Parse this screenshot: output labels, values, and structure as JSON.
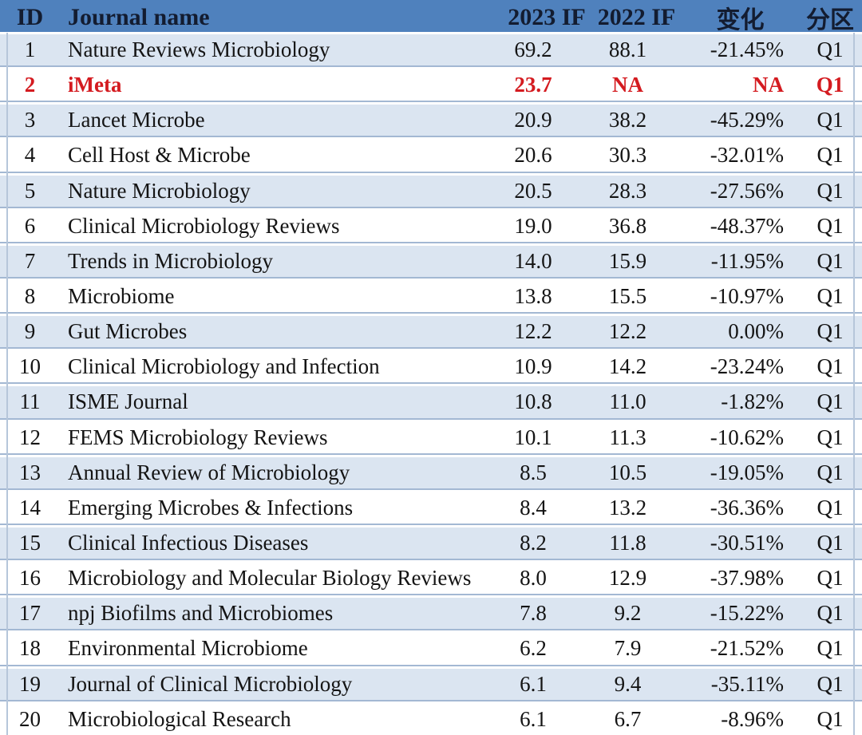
{
  "table": {
    "header": {
      "id": "ID",
      "name": "Journal name",
      "if2023": "2023 IF",
      "if2022": "2022 IF",
      "change": "变化",
      "quartile": "分区"
    },
    "rows": [
      {
        "id": "1",
        "name": "Nature Reviews Microbiology",
        "if2023": "69.2",
        "if2022": "88.1",
        "change": "-21.45%",
        "quartile": "Q1",
        "highlight": false
      },
      {
        "id": "2",
        "name": "iMeta",
        "if2023": "23.7",
        "if2022": "NA",
        "change": "NA",
        "quartile": "Q1",
        "highlight": true
      },
      {
        "id": "3",
        "name": "Lancet Microbe",
        "if2023": "20.9",
        "if2022": "38.2",
        "change": "-45.29%",
        "quartile": "Q1",
        "highlight": false
      },
      {
        "id": "4",
        "name": "Cell Host & Microbe",
        "if2023": "20.6",
        "if2022": "30.3",
        "change": "-32.01%",
        "quartile": "Q1",
        "highlight": false
      },
      {
        "id": "5",
        "name": "Nature Microbiology",
        "if2023": "20.5",
        "if2022": "28.3",
        "change": "-27.56%",
        "quartile": "Q1",
        "highlight": false
      },
      {
        "id": "6",
        "name": "Clinical Microbiology Reviews",
        "if2023": "19.0",
        "if2022": "36.8",
        "change": "-48.37%",
        "quartile": "Q1",
        "highlight": false
      },
      {
        "id": "7",
        "name": "Trends in Microbiology",
        "if2023": "14.0",
        "if2022": "15.9",
        "change": "-11.95%",
        "quartile": "Q1",
        "highlight": false
      },
      {
        "id": "8",
        "name": "Microbiome",
        "if2023": "13.8",
        "if2022": "15.5",
        "change": "-10.97%",
        "quartile": "Q1",
        "highlight": false
      },
      {
        "id": "9",
        "name": "Gut Microbes",
        "if2023": "12.2",
        "if2022": "12.2",
        "change": "0.00%",
        "quartile": "Q1",
        "highlight": false
      },
      {
        "id": "10",
        "name": "Clinical Microbiology and Infection",
        "if2023": "10.9",
        "if2022": "14.2",
        "change": "-23.24%",
        "quartile": "Q1",
        "highlight": false
      },
      {
        "id": "11",
        "name": "ISME Journal",
        "if2023": "10.8",
        "if2022": "11.0",
        "change": "-1.82%",
        "quartile": "Q1",
        "highlight": false
      },
      {
        "id": "12",
        "name": "FEMS Microbiology Reviews",
        "if2023": "10.1",
        "if2022": "11.3",
        "change": "-10.62%",
        "quartile": "Q1",
        "highlight": false
      },
      {
        "id": "13",
        "name": "Annual Review of Microbiology",
        "if2023": "8.5",
        "if2022": "10.5",
        "change": "-19.05%",
        "quartile": "Q1",
        "highlight": false
      },
      {
        "id": "14",
        "name": "Emerging Microbes & Infections",
        "if2023": "8.4",
        "if2022": "13.2",
        "change": "-36.36%",
        "quartile": "Q1",
        "highlight": false
      },
      {
        "id": "15",
        "name": "Clinical Infectious Diseases",
        "if2023": "8.2",
        "if2022": "11.8",
        "change": "-30.51%",
        "quartile": "Q1",
        "highlight": false
      },
      {
        "id": "16",
        "name": "Microbiology and Molecular Biology Reviews",
        "if2023": "8.0",
        "if2022": "12.9",
        "change": "-37.98%",
        "quartile": "Q1",
        "highlight": false
      },
      {
        "id": "17",
        "name": "npj Biofilms and Microbiomes",
        "if2023": "7.8",
        "if2022": "9.2",
        "change": "-15.22%",
        "quartile": "Q1",
        "highlight": false
      },
      {
        "id": "18",
        "name": "Environmental Microbiome",
        "if2023": "6.2",
        "if2022": "7.9",
        "change": "-21.52%",
        "quartile": "Q1",
        "highlight": false
      },
      {
        "id": "19",
        "name": "Journal of Clinical Microbiology",
        "if2023": "6.1",
        "if2022": "9.4",
        "change": "-35.11%",
        "quartile": "Q1",
        "highlight": false
      },
      {
        "id": "20",
        "name": "Microbiological Research",
        "if2023": "6.1",
        "if2022": "6.7",
        "change": "-8.96%",
        "quartile": "Q1",
        "highlight": false
      }
    ],
    "colors": {
      "header_bg": "#4f81bd",
      "header_text": "#131c30",
      "row_bg": "#ffffff",
      "row_alt_bg": "#dbe5f1",
      "separator": "#a3b8d3",
      "edge_line": "#b6c6da",
      "highlight_text": "#d41b20",
      "text": "#141414"
    }
  }
}
